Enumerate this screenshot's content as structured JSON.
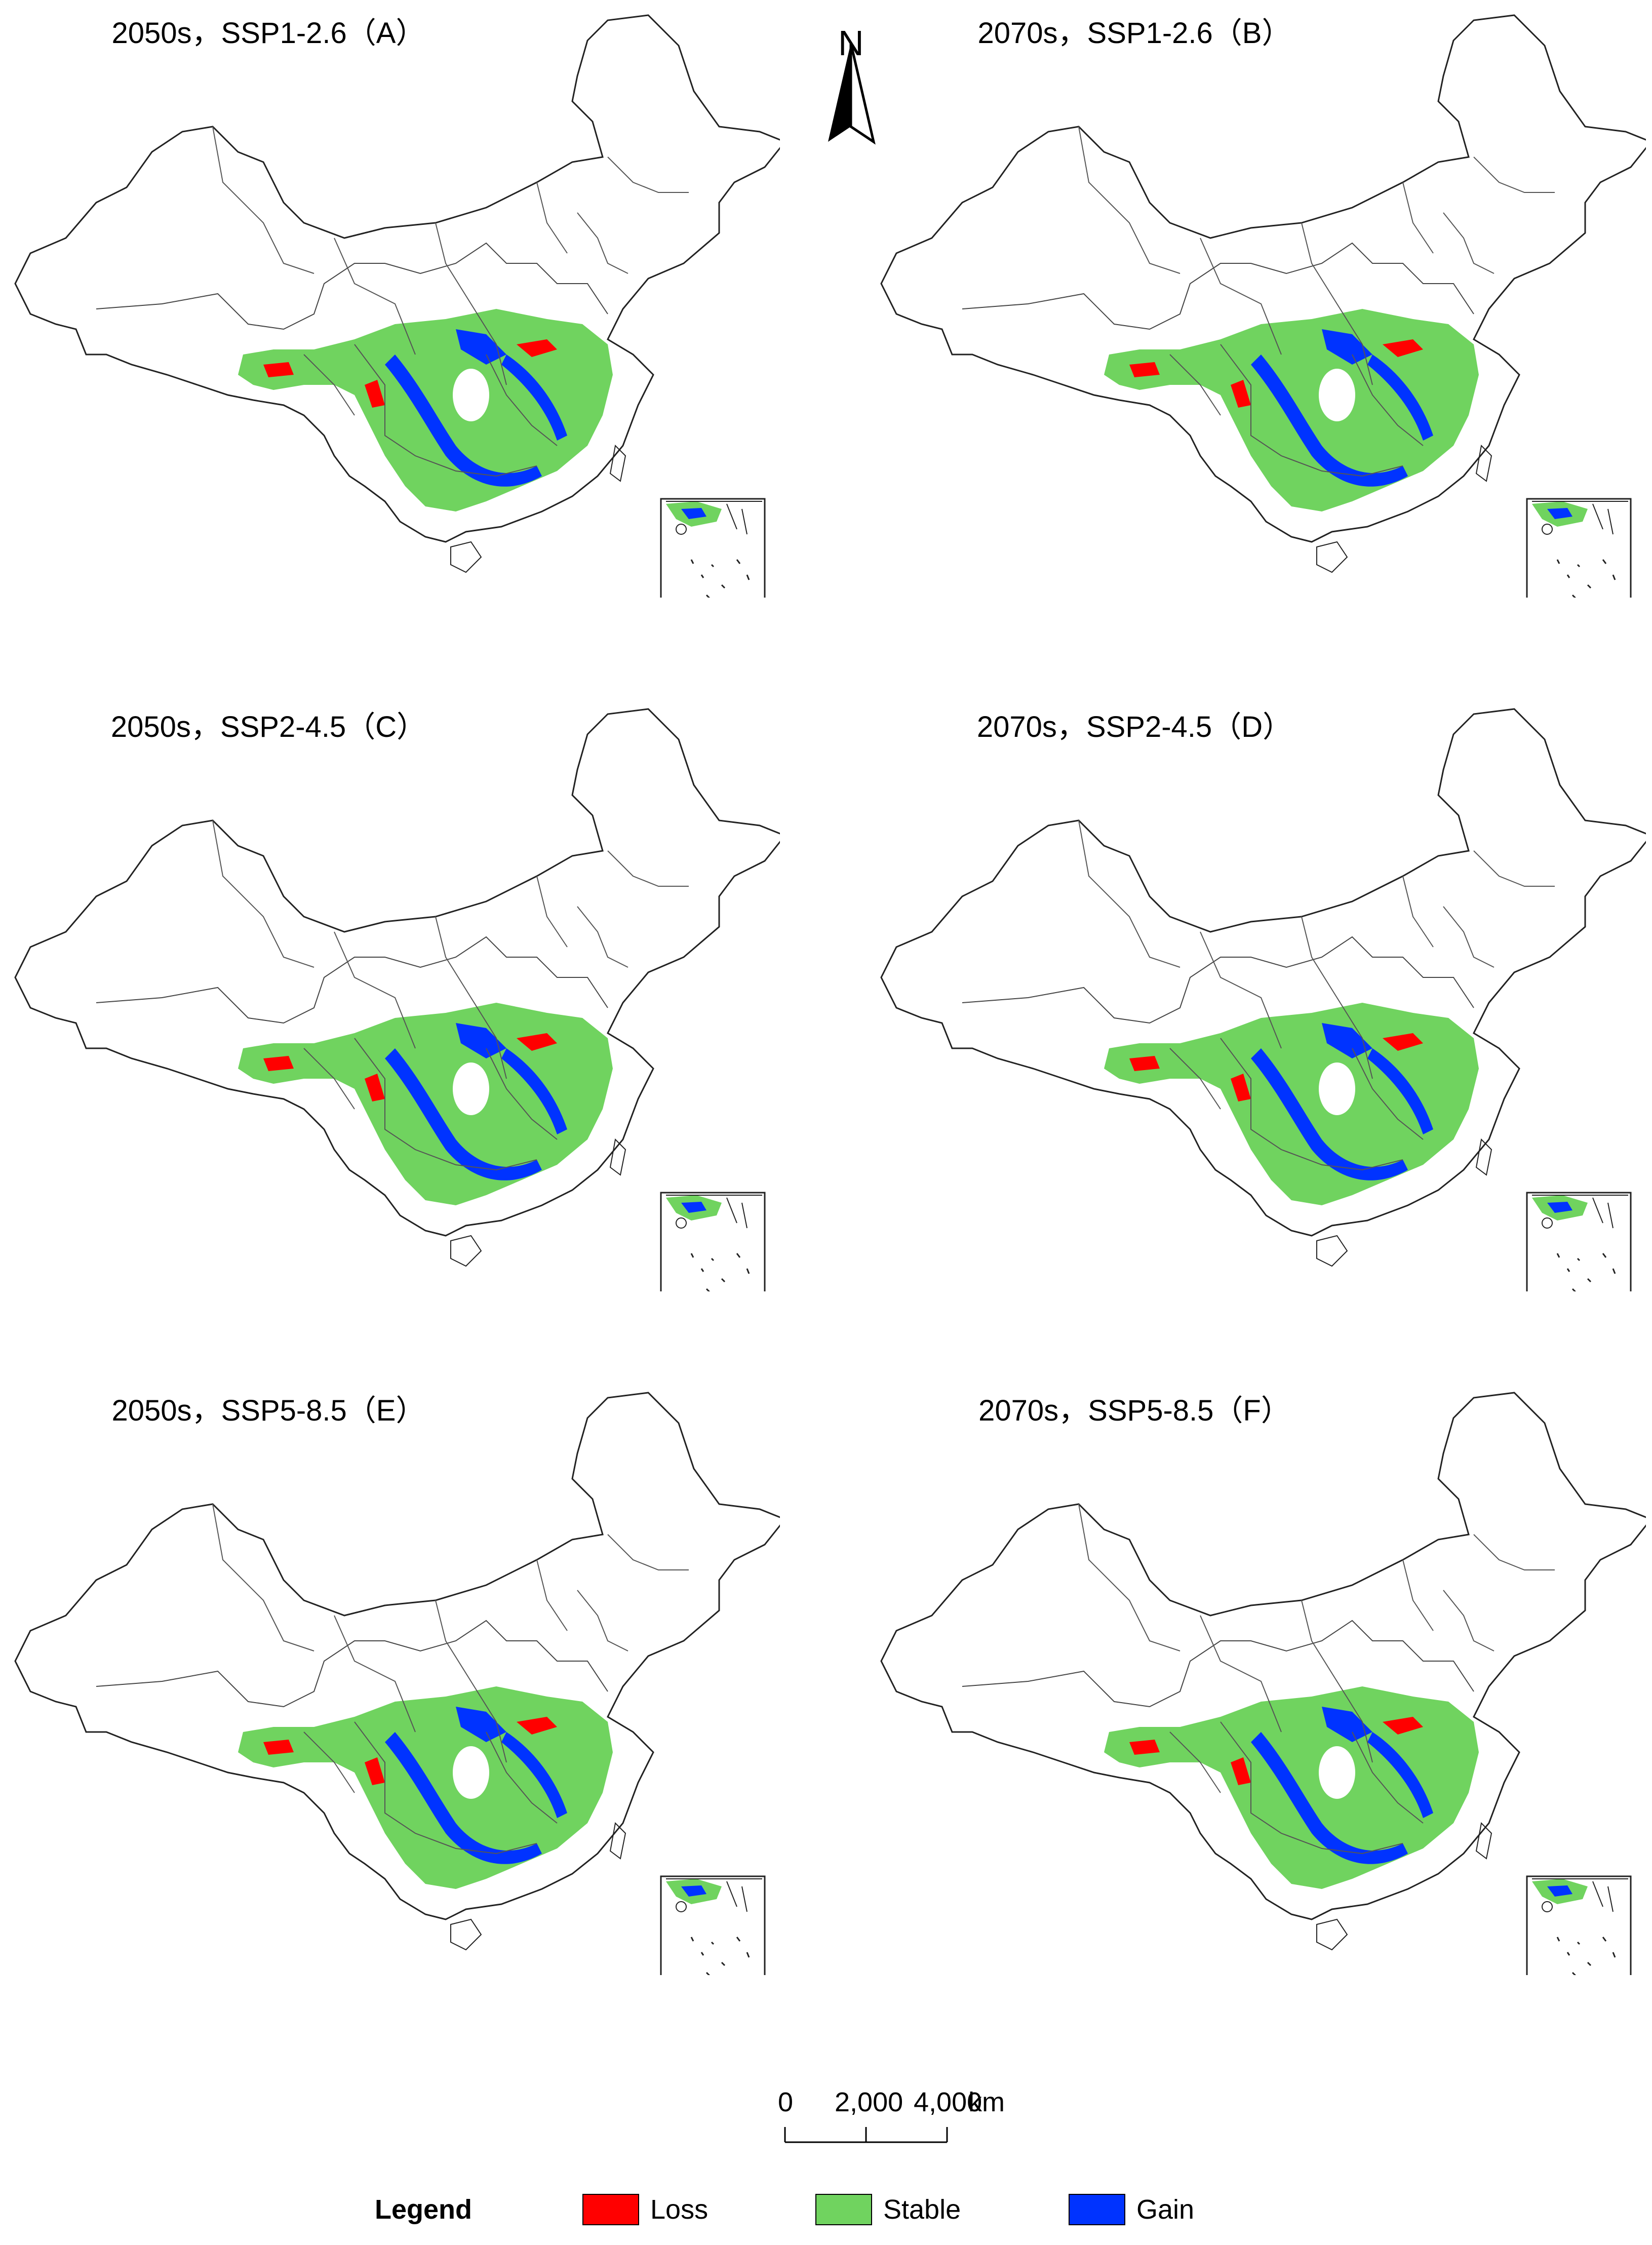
{
  "colors": {
    "loss": "#ff0000",
    "stable": "#70d35f",
    "gain": "#0033ff",
    "outline": "#222222"
  },
  "north_arrow": {
    "label": "N",
    "icon": "north-arrow-icon"
  },
  "panels": [
    {
      "id": "A",
      "title": "2050s，SSP1-2.6（A）"
    },
    {
      "id": "B",
      "title": "2070s，SSP1-2.6（B）"
    },
    {
      "id": "C",
      "title": "2050s，SSP2-4.5（C）"
    },
    {
      "id": "D",
      "title": "2070s，SSP2-4.5（D）"
    },
    {
      "id": "E",
      "title": "2050s，SSP5-8.5（E）"
    },
    {
      "id": "F",
      "title": "2070s，SSP5-8.5（F）"
    }
  ],
  "scale_bar": {
    "ticks": [
      "0",
      "2,000",
      "4,000"
    ],
    "unit": "km"
  },
  "legend": {
    "title": "Legend",
    "items": [
      {
        "label": "Loss",
        "color": "#ff0000"
      },
      {
        "label": "Stable",
        "color": "#70d35f"
      },
      {
        "label": "Gain",
        "color": "#0033ff"
      }
    ]
  }
}
